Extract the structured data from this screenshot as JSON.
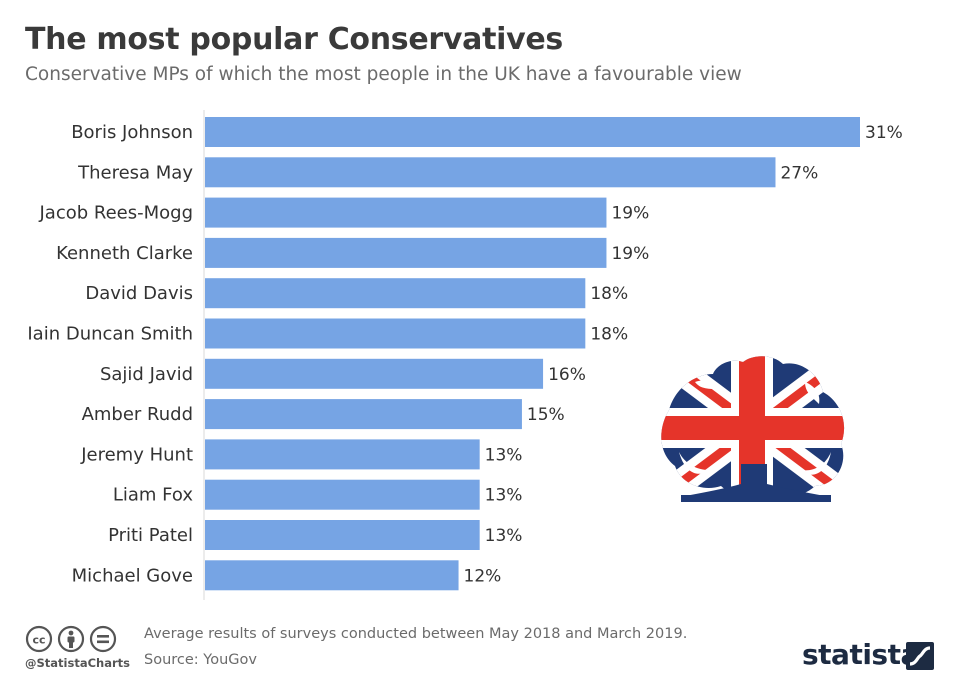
{
  "header": {
    "title": "The most popular Conservatives",
    "subtitle": "Conservative MPs of which the most people in the UK have a favourable view"
  },
  "chart_data": {
    "type": "bar",
    "orientation": "horizontal",
    "categories": [
      "Boris Johnson",
      "Theresa May",
      "Jacob Rees-Mogg",
      "Kenneth Clarke",
      "David Davis",
      "Iain Duncan Smith",
      "Sajid Javid",
      "Amber Rudd",
      "Jeremy Hunt",
      "Liam Fox",
      "Priti Patel",
      "Michael Gove"
    ],
    "values": [
      31,
      27,
      19,
      19,
      18,
      18,
      16,
      15,
      13,
      13,
      13,
      12
    ],
    "value_labels": [
      "31%",
      "27%",
      "19%",
      "19%",
      "18%",
      "18%",
      "16%",
      "15%",
      "13%",
      "13%",
      "13%",
      "12%"
    ],
    "unit": "%",
    "xlim": [
      0,
      31
    ],
    "grid": false,
    "bar_color": "#76a4e4"
  },
  "footer": {
    "handle": "@StatistaCharts",
    "note": "Average results of surveys conducted between May 2018 and March 2019.",
    "source": "Source: YouGov",
    "brand": "statista"
  },
  "icons": {
    "license": [
      "cc-icon",
      "by-icon",
      "nd-icon"
    ],
    "logo": "conservative-tree-logo",
    "brand_mark": "statista-mark-icon"
  },
  "colors": {
    "bar": "#76a4e4",
    "title": "#3a3a3a",
    "subtitle": "#6b6b6b",
    "brand": "#1d2b42",
    "flag_blue": "#1f3a76",
    "flag_red": "#e5342a"
  }
}
